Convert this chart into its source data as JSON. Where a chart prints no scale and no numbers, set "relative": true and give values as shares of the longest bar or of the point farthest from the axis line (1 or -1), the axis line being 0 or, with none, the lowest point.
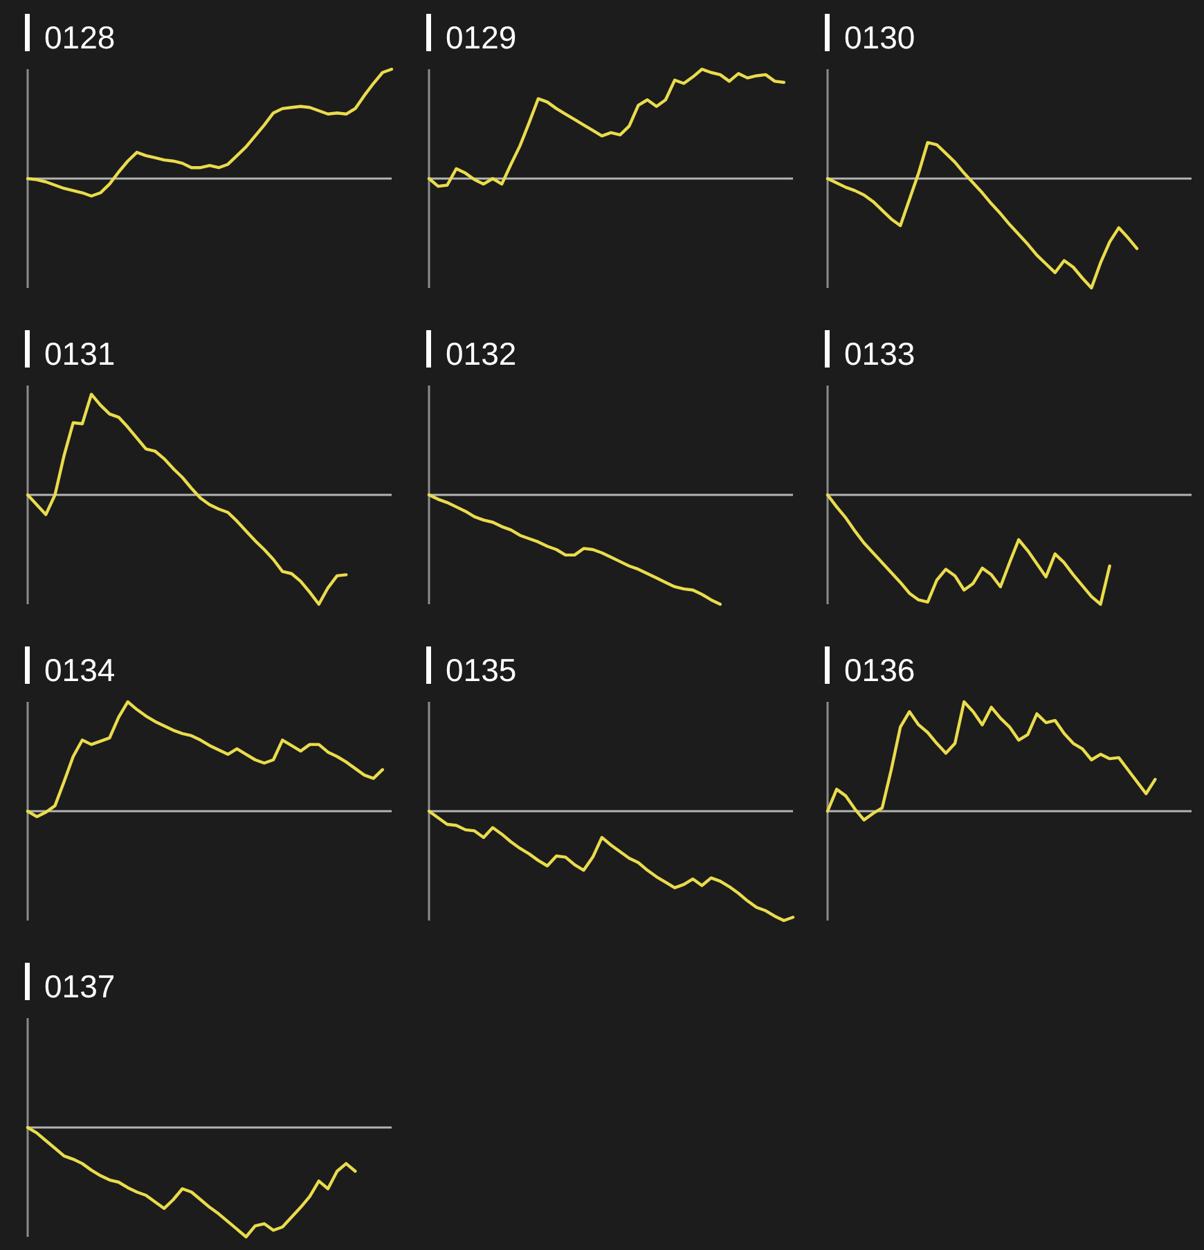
{
  "chart_data": [
    {
      "type": "line",
      "title": "0128",
      "relative": true,
      "color": "#eadc4c",
      "categories": [
        null,
        null,
        null,
        null,
        null,
        null,
        null,
        null,
        null,
        null,
        null,
        null,
        null,
        null,
        null,
        null,
        null,
        null,
        null,
        null,
        null,
        null,
        null,
        null,
        null,
        null,
        null,
        null,
        null,
        null,
        null,
        null,
        null,
        null,
        null,
        null,
        null,
        null,
        null,
        null,
        null
      ],
      "values": [
        0,
        -0.01,
        -0.03,
        -0.06,
        -0.09,
        -0.11,
        -0.13,
        -0.16,
        -0.13,
        -0.05,
        0.06,
        0.16,
        0.24,
        0.21,
        0.19,
        0.17,
        0.16,
        0.14,
        0.1,
        0.1,
        0.12,
        0.1,
        0.13,
        0.21,
        0.29,
        0.39,
        0.49,
        0.6,
        0.64,
        0.65,
        0.66,
        0.65,
        0.62,
        0.59,
        0.6,
        0.59,
        0.64,
        0.76,
        0.87,
        0.97,
        1
      ]
    },
    {
      "type": "line",
      "title": "0129",
      "relative": true,
      "color": "#eadc4c",
      "categories": [
        null,
        null,
        null,
        null,
        null,
        null,
        null,
        null,
        null,
        null,
        null,
        null,
        null,
        null,
        null,
        null,
        null,
        null,
        null,
        null,
        null,
        null,
        null,
        null,
        null,
        null,
        null,
        null,
        null,
        null,
        null,
        null,
        null,
        null,
        null,
        null,
        null,
        null,
        null,
        null,
        null
      ],
      "values": [
        0,
        -0.07,
        -0.06,
        0.09,
        0.05,
        -0.01,
        -0.05,
        0,
        -0.05,
        0.13,
        0.3,
        0.51,
        0.73,
        0.7,
        0.64,
        0.59,
        0.54,
        0.49,
        0.44,
        0.39,
        0.42,
        0.4,
        0.48,
        0.67,
        0.72,
        0.66,
        0.72,
        0.9,
        0.87,
        0.93,
        1,
        0.97,
        0.95,
        0.89,
        0.96,
        0.92,
        0.94,
        0.95,
        0.89,
        0.88,
        null
      ]
    },
    {
      "type": "line",
      "title": "0130",
      "relative": true,
      "color": "#eadc4c",
      "categories": [
        null,
        null,
        null,
        null,
        null,
        null,
        null,
        null,
        null,
        null,
        null,
        null,
        null,
        null,
        null,
        null,
        null,
        null,
        null,
        null,
        null,
        null,
        null,
        null,
        null,
        null,
        null,
        null,
        null,
        null,
        null,
        null,
        null,
        null,
        null,
        null,
        null,
        null,
        null,
        null,
        null
      ],
      "values": [
        0,
        -0.04,
        -0.08,
        -0.11,
        -0.15,
        -0.21,
        -0.29,
        -0.37,
        -0.43,
        -0.19,
        0.05,
        0.33,
        0.31,
        0.23,
        0.15,
        0.05,
        -0.04,
        -0.13,
        -0.23,
        -0.32,
        -0.42,
        -0.51,
        -0.6,
        -0.7,
        -0.78,
        -0.86,
        -0.75,
        -0.81,
        -0.91,
        -1,
        -0.77,
        -0.58,
        -0.45,
        -0.54,
        -0.64,
        null,
        null,
        null,
        null,
        null,
        null
      ]
    },
    {
      "type": "line",
      "title": "0131",
      "relative": true,
      "color": "#eadc4c",
      "categories": [
        null,
        null,
        null,
        null,
        null,
        null,
        null,
        null,
        null,
        null,
        null,
        null,
        null,
        null,
        null,
        null,
        null,
        null,
        null,
        null,
        null,
        null,
        null,
        null,
        null,
        null,
        null,
        null,
        null,
        null,
        null,
        null,
        null,
        null,
        null,
        null,
        null,
        null,
        null,
        null,
        null
      ],
      "values": [
        0,
        -0.09,
        -0.18,
        0,
        0.36,
        0.66,
        0.65,
        0.92,
        0.82,
        0.74,
        0.71,
        0.62,
        0.52,
        0.42,
        0.4,
        0.33,
        0.24,
        0.16,
        0.06,
        -0.03,
        -0.09,
        -0.13,
        -0.16,
        -0.24,
        -0.33,
        -0.42,
        -0.5,
        -0.59,
        -0.7,
        -0.72,
        -0.79,
        -0.89,
        -1,
        -0.85,
        -0.74,
        -0.73,
        null,
        null,
        null,
        null,
        null
      ]
    },
    {
      "type": "line",
      "title": "0132",
      "relative": true,
      "color": "#eadc4c",
      "categories": [
        null,
        null,
        null,
        null,
        null,
        null,
        null,
        null,
        null,
        null,
        null,
        null,
        null,
        null,
        null,
        null,
        null,
        null,
        null,
        null,
        null,
        null,
        null,
        null,
        null,
        null,
        null,
        null,
        null,
        null,
        null,
        null,
        null,
        null,
        null,
        null,
        null,
        null,
        null,
        null,
        null
      ],
      "values": [
        0,
        -0.04,
        -0.07,
        -0.11,
        -0.15,
        -0.2,
        -0.23,
        -0.25,
        -0.29,
        -0.32,
        -0.37,
        -0.4,
        -0.43,
        -0.47,
        -0.5,
        -0.55,
        -0.55,
        -0.49,
        -0.5,
        -0.53,
        -0.57,
        -0.61,
        -0.65,
        -0.68,
        -0.72,
        -0.76,
        -0.8,
        -0.84,
        -0.86,
        -0.87,
        -0.91,
        -0.96,
        -1,
        null,
        null,
        null,
        null,
        null,
        null,
        null,
        null
      ]
    },
    {
      "type": "line",
      "title": "0133",
      "relative": true,
      "color": "#eadc4c",
      "categories": [
        null,
        null,
        null,
        null,
        null,
        null,
        null,
        null,
        null,
        null,
        null,
        null,
        null,
        null,
        null,
        null,
        null,
        null,
        null,
        null,
        null,
        null,
        null,
        null,
        null,
        null,
        null,
        null,
        null,
        null,
        null,
        null,
        null,
        null,
        null,
        null,
        null,
        null,
        null,
        null,
        null
      ],
      "values": [
        0,
        -0.11,
        -0.21,
        -0.33,
        -0.44,
        -0.53,
        -0.62,
        -0.71,
        -0.8,
        -0.9,
        -0.96,
        -0.98,
        -0.78,
        -0.68,
        -0.74,
        -0.87,
        -0.81,
        -0.67,
        -0.73,
        -0.84,
        -0.62,
        -0.41,
        -0.51,
        -0.63,
        -0.75,
        -0.54,
        -0.62,
        -0.73,
        -0.83,
        -0.93,
        -1,
        -0.65,
        null,
        null,
        null,
        null,
        null,
        null,
        null,
        null,
        null
      ]
    },
    {
      "type": "line",
      "title": "0134",
      "relative": true,
      "color": "#eadc4c",
      "categories": [
        null,
        null,
        null,
        null,
        null,
        null,
        null,
        null,
        null,
        null,
        null,
        null,
        null,
        null,
        null,
        null,
        null,
        null,
        null,
        null,
        null,
        null,
        null,
        null,
        null,
        null,
        null,
        null,
        null,
        null,
        null,
        null,
        null,
        null,
        null,
        null,
        null,
        null,
        null,
        null,
        null
      ],
      "values": [
        0,
        -0.05,
        -0.01,
        0.05,
        0.27,
        0.5,
        0.65,
        0.61,
        0.64,
        0.67,
        0.86,
        1,
        0.93,
        0.87,
        0.82,
        0.78,
        0.74,
        0.71,
        0.69,
        0.65,
        0.6,
        0.56,
        0.52,
        0.57,
        0.52,
        0.47,
        0.44,
        0.47,
        0.65,
        0.6,
        0.55,
        0.61,
        0.61,
        0.54,
        0.5,
        0.45,
        0.39,
        0.33,
        0.3,
        0.38,
        null
      ]
    },
    {
      "type": "line",
      "title": "0135",
      "relative": true,
      "color": "#eadc4c",
      "categories": [
        null,
        null,
        null,
        null,
        null,
        null,
        null,
        null,
        null,
        null,
        null,
        null,
        null,
        null,
        null,
        null,
        null,
        null,
        null,
        null,
        null,
        null,
        null,
        null,
        null,
        null,
        null,
        null,
        null,
        null,
        null,
        null,
        null,
        null,
        null,
        null,
        null,
        null,
        null,
        null,
        null
      ],
      "values": [
        0,
        -0.06,
        -0.12,
        -0.13,
        -0.17,
        -0.18,
        -0.24,
        -0.15,
        -0.21,
        -0.28,
        -0.34,
        -0.39,
        -0.45,
        -0.5,
        -0.41,
        -0.42,
        -0.49,
        -0.54,
        -0.42,
        -0.24,
        -0.31,
        -0.37,
        -0.43,
        -0.47,
        -0.54,
        -0.6,
        -0.65,
        -0.7,
        -0.67,
        -0.62,
        -0.68,
        -0.61,
        -0.64,
        -0.69,
        -0.75,
        -0.82,
        -0.88,
        -0.91,
        -0.96,
        -1,
        -0.97
      ]
    },
    {
      "type": "line",
      "title": "0136",
      "relative": true,
      "color": "#eadc4c",
      "categories": [
        null,
        null,
        null,
        null,
        null,
        null,
        null,
        null,
        null,
        null,
        null,
        null,
        null,
        null,
        null,
        null,
        null,
        null,
        null,
        null,
        null,
        null,
        null,
        null,
        null,
        null,
        null,
        null,
        null,
        null,
        null,
        null,
        null,
        null,
        null,
        null,
        null,
        null,
        null,
        null,
        null
      ],
      "values": [
        0,
        0.2,
        0.14,
        0.02,
        -0.08,
        -0.02,
        0.03,
        0.38,
        0.77,
        0.91,
        0.79,
        0.72,
        0.62,
        0.53,
        0.62,
        1,
        0.91,
        0.79,
        0.95,
        0.85,
        0.77,
        0.65,
        0.7,
        0.89,
        0.81,
        0.83,
        0.71,
        0.62,
        0.57,
        0.47,
        0.52,
        0.48,
        0.49,
        0.38,
        0.27,
        0.16,
        0.29,
        null,
        null,
        null,
        null
      ]
    },
    {
      "type": "line",
      "title": "0137",
      "relative": true,
      "color": "#eadc4c",
      "categories": [
        null,
        null,
        null,
        null,
        null,
        null,
        null,
        null,
        null,
        null,
        null,
        null,
        null,
        null,
        null,
        null,
        null,
        null,
        null,
        null,
        null,
        null,
        null,
        null,
        null,
        null,
        null,
        null,
        null,
        null,
        null,
        null,
        null,
        null,
        null,
        null,
        null,
        null,
        null,
        null,
        null
      ],
      "values": [
        0,
        -0.05,
        -0.12,
        -0.19,
        -0.26,
        -0.29,
        -0.33,
        -0.39,
        -0.44,
        -0.48,
        -0.5,
        -0.55,
        -0.59,
        -0.62,
        -0.68,
        -0.74,
        -0.66,
        -0.56,
        -0.59,
        -0.66,
        -0.73,
        -0.79,
        -0.86,
        -0.93,
        -1,
        -0.9,
        -0.88,
        -0.94,
        -0.91,
        -0.82,
        -0.73,
        -0.63,
        -0.49,
        -0.56,
        -0.4,
        -0.33,
        -0.4,
        null,
        null,
        null,
        null
      ]
    }
  ]
}
